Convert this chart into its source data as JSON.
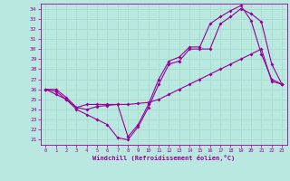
{
  "xlabel": "Windchill (Refroidissement éolien,°C)",
  "xlim": [
    -0.5,
    23.5
  ],
  "ylim": [
    20.5,
    34.5
  ],
  "yticks": [
    21,
    22,
    23,
    24,
    25,
    26,
    27,
    28,
    29,
    30,
    31,
    32,
    33,
    34
  ],
  "xticks": [
    0,
    1,
    2,
    3,
    4,
    5,
    6,
    7,
    8,
    9,
    10,
    11,
    12,
    13,
    14,
    15,
    16,
    17,
    18,
    19,
    20,
    21,
    22,
    23
  ],
  "bg_color": "#b8e8e0",
  "line_color": "#990099",
  "grid_color": "#aaddcc",
  "line1_x": [
    0,
    1,
    2,
    3,
    4,
    5,
    6,
    7,
    8,
    9,
    10,
    11,
    12,
    13,
    14,
    15,
    16,
    17,
    18,
    19,
    20,
    21,
    22,
    23
  ],
  "line1_y": [
    26,
    25.5,
    25,
    24,
    23.5,
    23,
    22.5,
    21.2,
    21,
    22.3,
    24.2,
    26.5,
    28.5,
    28.8,
    30,
    30,
    30,
    32.5,
    33.2,
    34,
    33.5,
    32.7,
    28.5,
    26.5
  ],
  "line2_x": [
    0,
    1,
    2,
    3,
    4,
    5,
    6,
    7,
    8,
    9,
    10,
    11,
    12,
    13,
    14,
    15,
    16,
    17,
    18,
    19,
    20,
    21,
    22,
    23
  ],
  "line2_y": [
    26,
    26,
    25.2,
    24.2,
    24,
    24.3,
    24.4,
    24.5,
    24.5,
    24.6,
    24.7,
    25,
    25.5,
    26,
    26.5,
    27,
    27.5,
    28,
    28.5,
    29,
    29.5,
    30,
    26.8,
    26.5
  ],
  "line3_x": [
    0,
    1,
    2,
    3,
    4,
    5,
    6,
    7,
    8,
    9,
    10,
    11,
    12,
    13,
    14,
    15,
    16,
    17,
    18,
    19,
    20,
    21,
    22,
    23
  ],
  "line3_y": [
    26,
    25.8,
    25,
    24.2,
    24.5,
    24.5,
    24.5,
    24.5,
    21.3,
    22.5,
    24.5,
    27,
    28.8,
    29.2,
    30.2,
    30.2,
    32.5,
    33.2,
    33.8,
    34.3,
    32.8,
    29.5,
    27.0,
    26.5
  ],
  "marker": "D",
  "markersize": 2,
  "linewidth": 0.8
}
